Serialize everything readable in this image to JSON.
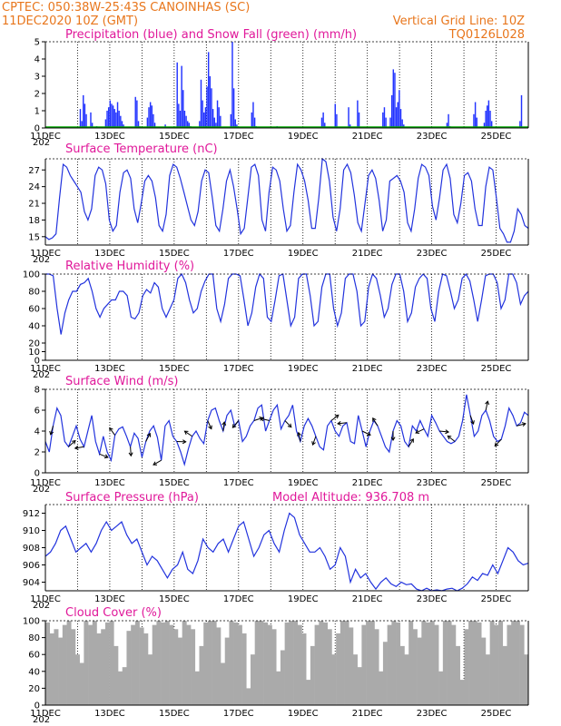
{
  "header": {
    "left_line1": "CPTEC:   050:38W-25:43S   CANOINHAS (SC)",
    "left_line2": "11DEC2020 10Z (GMT)",
    "right_line1": "Vertical Grid Line: 10Z",
    "right_line2": "TQ0126L028"
  },
  "x_axis": {
    "labels": [
      "11DEC",
      "13DEC",
      "15DEC",
      "17DEC",
      "19DEC",
      "21DEC",
      "23DEC",
      "25DEC"
    ],
    "year_stub": "202",
    "days": 15
  },
  "colors": {
    "line": "#2233dd",
    "bar": "#2233ff",
    "snow": "#00aa00",
    "cloud": "#aaaaaa",
    "header": "#e8761c",
    "title": "#e0189a"
  },
  "chart_data": [
    {
      "type": "bar",
      "title": "Precipitation (blue) and Snow Fall (green) (mm/h)",
      "ylim": [
        0,
        5
      ],
      "yticks": [
        0,
        1,
        2,
        3,
        4,
        5
      ],
      "series": [
        {
          "name": "Precipitation",
          "values": [
            0,
            0,
            0,
            0,
            0,
            0,
            0,
            0,
            0,
            0,
            0,
            0,
            0,
            0,
            0,
            0,
            0,
            0,
            0,
            0,
            0,
            0,
            0,
            1.1,
            0.4,
            1.9,
            1.4,
            0.8,
            0,
            0,
            0.9,
            0.3,
            0,
            0,
            0.1,
            0,
            0,
            0,
            0,
            0,
            0.5,
            1.0,
            1.2,
            1.6,
            1.4,
            1.3,
            1.1,
            0.9,
            1.5,
            1.0,
            0.7,
            0.4,
            0.2,
            0,
            0,
            0,
            0,
            0,
            0,
            0,
            1.8,
            1.6,
            0.4,
            0.1,
            0,
            0,
            0,
            0,
            0.6,
            1.2,
            1.5,
            1.3,
            0.8,
            0.3,
            0,
            0,
            0,
            0,
            0,
            0,
            0.2,
            0,
            0,
            0,
            0,
            0,
            0,
            0,
            3.8,
            1.4,
            1.0,
            3.6,
            2.2,
            1.0,
            0.7,
            0.4,
            0.3,
            0.1,
            0,
            0,
            0,
            0,
            0,
            0.4,
            2.8,
            1.6,
            0.9,
            1.2,
            2.4,
            4.4,
            3.0,
            2.3,
            1.1,
            0.6,
            0.3,
            1.6,
            1.2,
            0.7,
            0,
            0,
            0,
            0,
            0,
            0,
            0.8,
            5.0,
            2.3,
            0.5,
            0.2,
            0,
            0,
            0,
            0,
            0,
            0,
            0,
            0,
            0,
            0.9,
            1.5,
            0.6,
            0.1,
            0,
            0,
            0,
            0,
            0,
            0,
            0,
            0,
            0,
            0,
            0,
            0,
            0,
            0.1,
            0,
            0,
            0,
            0,
            0,
            0,
            0,
            0,
            0,
            0,
            0,
            0,
            0,
            0,
            0,
            0,
            0,
            0,
            0,
            0,
            0,
            0,
            0,
            0,
            0,
            0,
            0,
            0,
            0,
            0.6,
            0.9,
            0.3,
            0,
            0,
            0,
            0,
            0,
            0,
            1.4,
            0.8,
            0,
            0,
            0,
            0,
            0,
            0,
            0,
            1.2,
            0.2,
            0,
            0,
            0,
            0,
            1.6,
            0.9,
            0,
            0,
            0,
            0,
            0,
            0,
            0,
            0,
            0,
            0,
            0,
            0,
            0,
            0,
            0,
            0.9,
            1.2,
            0.6,
            0,
            0,
            0.6,
            1.9,
            3.4,
            3.2,
            1.2,
            1.5,
            2.2,
            1.1,
            0.5,
            0.2,
            0,
            0,
            0,
            0,
            0,
            0,
            0,
            0,
            0,
            0,
            0,
            0,
            0,
            0,
            0,
            0,
            0,
            0,
            0,
            0,
            0,
            0,
            0,
            0,
            0,
            0,
            0,
            0,
            0.3,
            0.8,
            0.1,
            0,
            0,
            0,
            0,
            0,
            0,
            0,
            0,
            0,
            0,
            0,
            0,
            0,
            0,
            0,
            0.8,
            1.5,
            0.6,
            0,
            0,
            0,
            0,
            0.3,
            1.0,
            1.3,
            1.6,
            1.0,
            0.4,
            0,
            0,
            0,
            0,
            0,
            0,
            0,
            0,
            0,
            0,
            0,
            0,
            0,
            0,
            0,
            0,
            0,
            0,
            0.4,
            1.9,
            0,
            0,
            0,
            0
          ]
        },
        {
          "name": "Snow Fall",
          "values": [
            0
          ]
        }
      ]
    },
    {
      "type": "line",
      "title": "Surface Temperature (nC)",
      "ylim": [
        13.5,
        29
      ],
      "yticks": [
        15,
        18,
        21,
        24,
        27
      ],
      "values": [
        15,
        14.5,
        14.8,
        15.5,
        22,
        28,
        27.5,
        26,
        25,
        24,
        23,
        19.5,
        18,
        20,
        26,
        27.5,
        27,
        24.5,
        18,
        16,
        17,
        23,
        26.5,
        27,
        25.5,
        20,
        17.5,
        21,
        25,
        26,
        25,
        22,
        17,
        16,
        19,
        26,
        28,
        27.5,
        25.5,
        23,
        20.5,
        18,
        17,
        19.5,
        25,
        27,
        26.5,
        22,
        17,
        16,
        20,
        25,
        27,
        24,
        20,
        15.5,
        16.5,
        22,
        27.5,
        28,
        26,
        18,
        16,
        23,
        27.5,
        27,
        25,
        20,
        16,
        17,
        23,
        28,
        27,
        25,
        21.5,
        16.5,
        16.5,
        22,
        29,
        28.5,
        25,
        18.5,
        16,
        20,
        27,
        28,
        26.5,
        22.5,
        17.5,
        16,
        21,
        26,
        27,
        25.5,
        21.5,
        16,
        18,
        25,
        25.5,
        26,
        25,
        23,
        17.5,
        16,
        20,
        25.5,
        28,
        27.5,
        26,
        20.5,
        18,
        22,
        27,
        28,
        25.5,
        19,
        17.5,
        21,
        26,
        26.5,
        25,
        20,
        17,
        17,
        24,
        27.5,
        27,
        22,
        16.5,
        15.5,
        14,
        14,
        16,
        20,
        19,
        17,
        16.5
      ]
    },
    {
      "type": "line",
      "title": "Relative Humidity (%)",
      "ylim": [
        0,
        100
      ],
      "yticks": [
        0,
        10,
        20,
        40,
        60,
        80,
        100
      ],
      "values": [
        100,
        100,
        98,
        60,
        30,
        55,
        70,
        80,
        80,
        88,
        90,
        95,
        80,
        60,
        50,
        60,
        65,
        70,
        70,
        80,
        80,
        75,
        50,
        48,
        55,
        75,
        82,
        78,
        90,
        85,
        60,
        50,
        60,
        70,
        95,
        100,
        90,
        70,
        55,
        60,
        80,
        92,
        100,
        100,
        60,
        45,
        65,
        95,
        100,
        100,
        98,
        70,
        40,
        55,
        85,
        100,
        95,
        50,
        45,
        70,
        98,
        100,
        70,
        40,
        50,
        95,
        100,
        100,
        75,
        40,
        45,
        85,
        100,
        100,
        60,
        40,
        55,
        95,
        100,
        100,
        80,
        40,
        45,
        85,
        100,
        95,
        75,
        50,
        60,
        88,
        100,
        100,
        80,
        45,
        55,
        85,
        95,
        100,
        95,
        60,
        45,
        80,
        100,
        98,
        80,
        60,
        70,
        95,
        100,
        92,
        70,
        45,
        70,
        98,
        100,
        100,
        90,
        60,
        70,
        100,
        100,
        90,
        65,
        75,
        80
      ]
    },
    {
      "type": "line",
      "title": "Surface Wind (m/s)",
      "ylim": [
        0,
        8
      ],
      "yticks": [
        0,
        2,
        4,
        6,
        8
      ],
      "values": [
        3,
        2,
        4.5,
        6.2,
        5.5,
        3,
        2.5,
        3.5,
        4.5,
        3.2,
        2.5,
        4,
        5.5,
        3,
        1.8,
        3.5,
        2,
        1.2,
        3.6,
        4.2,
        4.4,
        3.5,
        2.5,
        3.8,
        3.3,
        1.5,
        3,
        4,
        4.5,
        3.4,
        1.2,
        4.5,
        5,
        3.5,
        3,
        2,
        0.8,
        2.3,
        3.5,
        4,
        3.3,
        2.8,
        5,
        6,
        6.2,
        5,
        4,
        5.5,
        6,
        4.5,
        5,
        3,
        3.5,
        4.5,
        5,
        6.2,
        6.5,
        4,
        5,
        6,
        6.5,
        4.2,
        5,
        5.5,
        6.5,
        4,
        3,
        4.5,
        5.2,
        4.5,
        3.5,
        2.5,
        2.2,
        4.5,
        5,
        4,
        3.5,
        4.5,
        4.8,
        3,
        2.8,
        5.5,
        4,
        2.5,
        4,
        5,
        4.5,
        3.5,
        2.5,
        2,
        4,
        5,
        4.5,
        3,
        2.5,
        4.5,
        4,
        5,
        4.2,
        3.5,
        5.5,
        4.8,
        4,
        3.5,
        3,
        2.8,
        3,
        3.5,
        5,
        7.5,
        5.5,
        3.5,
        4,
        5.5,
        6,
        5,
        3.5,
        3,
        3.2,
        4.5,
        6.2,
        5.5,
        4.5,
        4.8,
        5.8,
        5.5
      ]
    },
    {
      "type": "line",
      "title": "Surface Pressure (hPa)",
      "annotation": "Model Altitude: 936.708 m",
      "ylim": [
        903,
        913
      ],
      "yticks": [
        904,
        906,
        908,
        910,
        912
      ],
      "values": [
        907,
        907.5,
        908.5,
        910,
        910.5,
        909,
        907.5,
        908,
        908.5,
        907.5,
        908.5,
        910,
        911,
        910,
        910.5,
        911,
        909.5,
        908.5,
        909,
        907.5,
        906,
        907,
        906.5,
        905.5,
        904.5,
        905.5,
        906,
        907.5,
        905.5,
        905,
        906.5,
        909,
        908,
        907.5,
        908.5,
        909,
        907.5,
        909,
        910.5,
        911,
        909,
        907,
        908,
        909.5,
        910,
        908.5,
        907.5,
        910,
        912,
        911.5,
        909.5,
        908.5,
        907.5,
        907.5,
        908,
        907,
        905.5,
        906,
        908,
        907,
        904,
        905.5,
        904.5,
        905,
        904,
        903.2,
        904,
        904.5,
        903.8,
        903.5,
        904,
        903.7,
        903.8,
        903.2,
        903,
        903.3,
        903,
        903.1,
        903,
        903.2,
        903.3,
        903,
        903.3,
        903.8,
        904.6,
        904.2,
        905,
        904.8,
        906,
        905,
        906.5,
        908,
        907.5,
        906.5,
        906,
        906.2
      ]
    },
    {
      "type": "bar",
      "title": "Cloud Cover (%)",
      "ylim": [
        0,
        100
      ],
      "yticks": [
        0,
        20,
        40,
        60,
        80,
        100
      ],
      "values": [
        98,
        85,
        90,
        80,
        95,
        100,
        90,
        60,
        50,
        100,
        95,
        100,
        85,
        90,
        98,
        100,
        70,
        40,
        45,
        88,
        95,
        100,
        92,
        85,
        60,
        95,
        100,
        98,
        100,
        95,
        90,
        80,
        100,
        95,
        90,
        40,
        70,
        98,
        100,
        100,
        92,
        50,
        80,
        100,
        98,
        95,
        85,
        20,
        60,
        100,
        100,
        98,
        95,
        90,
        40,
        65,
        98,
        100,
        100,
        95,
        85,
        30,
        70,
        95,
        100,
        98,
        90,
        60,
        85,
        100,
        100,
        92,
        60,
        45,
        95,
        100,
        100,
        90,
        40,
        75,
        95,
        100,
        98,
        70,
        60,
        100,
        90,
        80,
        100,
        98,
        100,
        95,
        40,
        100,
        100,
        95,
        70,
        30,
        90,
        100,
        100,
        98,
        80,
        60,
        100,
        95,
        100,
        70,
        95,
        100,
        100,
        95,
        60
      ]
    }
  ],
  "panel_titles": {
    "precip": "Precipitation (blue) and Snow Fall (green) (mm/h)",
    "temp": "Surface Temperature (nC)",
    "rh": "Relative Humidity (%)",
    "wind": "Surface Wind (m/s)",
    "pres": "Surface Pressure (hPa)",
    "pres_alt": "Model Altitude: 936.708 m",
    "cloud": "Cloud Cover (%)"
  }
}
